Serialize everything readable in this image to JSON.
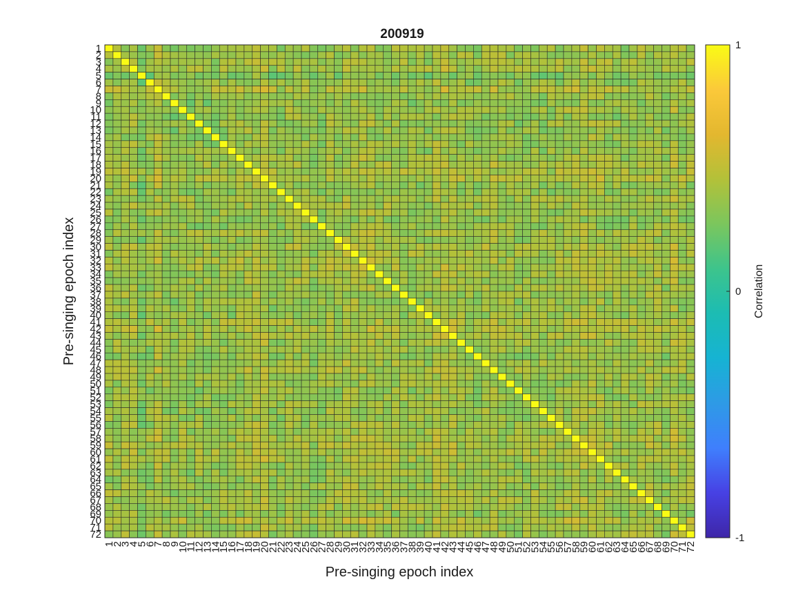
{
  "chart_data": {
    "type": "heatmap",
    "title": "200919",
    "xlabel": "Pre-singing epoch index",
    "ylabel": "Pre-singing epoch index",
    "n": 72,
    "x_ticklabels": [
      "1",
      "2",
      "3",
      "4",
      "5",
      "6",
      "7",
      "8",
      "9",
      "10",
      "11",
      "12",
      "13",
      "14",
      "15",
      "16",
      "17",
      "18",
      "19",
      "20",
      "21",
      "22",
      "23",
      "24",
      "25",
      "26",
      "27",
      "28",
      "29",
      "30",
      "31",
      "32",
      "33",
      "34",
      "35",
      "36",
      "37",
      "38",
      "39",
      "40",
      "41",
      "42",
      "43",
      "44",
      "45",
      "46",
      "47",
      "48",
      "49",
      "50",
      "51",
      "52",
      "53",
      "54",
      "55",
      "56",
      "57",
      "58",
      "59",
      "60",
      "61",
      "62",
      "63",
      "64",
      "65",
      "66",
      "67",
      "68",
      "69",
      "70",
      "71",
      "72"
    ],
    "y_ticklabels": [
      "1",
      "2",
      "3",
      "4",
      "5",
      "6",
      "7",
      "8",
      "9",
      "10",
      "11",
      "12",
      "13",
      "14",
      "15",
      "16",
      "17",
      "18",
      "19",
      "20",
      "21",
      "22",
      "23",
      "24",
      "25",
      "26",
      "27",
      "28",
      "29",
      "30",
      "31",
      "32",
      "33",
      "34",
      "35",
      "36",
      "37",
      "38",
      "39",
      "40",
      "41",
      "42",
      "43",
      "44",
      "45",
      "46",
      "47",
      "48",
      "49",
      "50",
      "51",
      "52",
      "53",
      "54",
      "55",
      "56",
      "57",
      "58",
      "59",
      "60",
      "61",
      "62",
      "63",
      "64",
      "65",
      "66",
      "67",
      "68",
      "69",
      "70",
      "71",
      "72"
    ],
    "diagonal_value": 1,
    "off_diagonal_typical_range": [
      0.15,
      0.65
    ],
    "epoch_mean_level": [
      0.38,
      0.4,
      0.42,
      0.43,
      0.22,
      0.35,
      0.52,
      0.36,
      0.3,
      0.4,
      0.33,
      0.37,
      0.32,
      0.34,
      0.36,
      0.35,
      0.4,
      0.44,
      0.47,
      0.5,
      0.34,
      0.32,
      0.4,
      0.41,
      0.38,
      0.3,
      0.33,
      0.42,
      0.36,
      0.45,
      0.44,
      0.46,
      0.45,
      0.4,
      0.41,
      0.42,
      0.38,
      0.36,
      0.34,
      0.35,
      0.46,
      0.48,
      0.44,
      0.4,
      0.36,
      0.35,
      0.4,
      0.45,
      0.38,
      0.36,
      0.32,
      0.37,
      0.38,
      0.36,
      0.35,
      0.38,
      0.42,
      0.44,
      0.46,
      0.47,
      0.45,
      0.4,
      0.36,
      0.35,
      0.4,
      0.42,
      0.43,
      0.44,
      0.3,
      0.5,
      0.38,
      0.4
    ],
    "colorbar": {
      "label": "Correlation",
      "clim": [
        -1,
        1
      ],
      "ticks": [
        -1,
        0,
        1
      ],
      "ticklabels": [
        "-1",
        "0",
        "1"
      ],
      "colormap": "parula",
      "colors": [
        "#3e26a8",
        "#4741e4",
        "#3f7ffd",
        "#2e9ae6",
        "#16b3d3",
        "#1cbcb3",
        "#3dc48c",
        "#7bc65d",
        "#b3c139",
        "#e3b72f",
        "#fbc93a",
        "#f9fb15"
      ]
    },
    "grid": true,
    "grid_color": "#2a2a2a"
  }
}
